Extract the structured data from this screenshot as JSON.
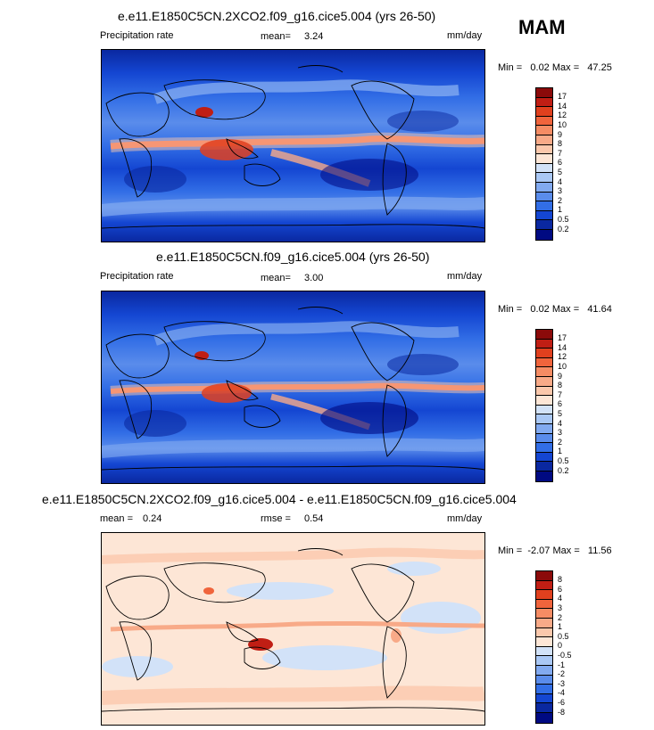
{
  "season": "MAM",
  "panels": [
    {
      "title": "e.e11.E1850C5CN.2XCO2.f09_g16.cice5.004 (yrs 26-50)",
      "field_label": "Precipitation rate",
      "stat_label": "mean=",
      "stat_value": "3.24",
      "units": "mm/day",
      "min_label": "Min =",
      "min_value": "0.02",
      "max_label": "Max =",
      "max_value": "47.25"
    },
    {
      "title": "e.e11.E1850C5CN.f09_g16.cice5.004 (yrs 26-50)",
      "field_label": "Precipitation rate",
      "stat_label": "mean=",
      "stat_value": "3.00",
      "units": "mm/day",
      "min_label": "Min =",
      "min_value": "0.02",
      "max_label": "Max =",
      "max_value": "41.64"
    },
    {
      "title": "e.e11.E1850C5CN.2XCO2.f09_g16.cice5.004 - e.e11.E1850C5CN.f09_g16.cice5.004",
      "field_label": "mean =",
      "field_value": "0.24",
      "stat_label": "rmse =",
      "stat_value": "0.54",
      "units": "mm/day",
      "min_label": "Min =",
      "min_value": "-2.07",
      "max_label": "Max =",
      "max_value": "11.56"
    }
  ],
  "colorbars": {
    "precip": {
      "levels": [
        "17",
        "14",
        "12",
        "10",
        "9",
        "8",
        "7",
        "6",
        "5",
        "4",
        "3",
        "2",
        "1",
        "0.5",
        "0.2"
      ],
      "colors": [
        "#8b0a0a",
        "#c01e14",
        "#e0401e",
        "#f0643c",
        "#f58c64",
        "#f8aa88",
        "#fbc8ac",
        "#fde6d6",
        "#d2e2f8",
        "#aac8f5",
        "#82aaf0",
        "#5a8ceb",
        "#326ee6",
        "#1446d2",
        "#0a28a0",
        "#000a82"
      ]
    },
    "diff": {
      "levels": [
        "8",
        "6",
        "4",
        "3",
        "2",
        "1",
        "0.5",
        "0",
        "-0.5",
        "-1",
        "-2",
        "-3",
        "-4",
        "-6",
        "-8"
      ],
      "colors": [
        "#8b0a0a",
        "#c01e14",
        "#e0401e",
        "#f0643c",
        "#f58c64",
        "#f8aa88",
        "#fbc8ac",
        "#fde6d6",
        "#d2e2f8",
        "#aac8f5",
        "#82aaf0",
        "#5a8ceb",
        "#326ee6",
        "#1446d2",
        "#0a28a0",
        "#000a82"
      ]
    }
  }
}
